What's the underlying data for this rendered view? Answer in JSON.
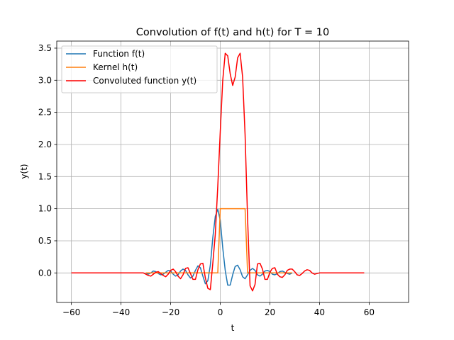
{
  "chart_data": {
    "type": "line",
    "title": "Convolution of f(t) and h(t) for T = 10",
    "xlabel": "t",
    "ylabel": "y(t)",
    "xlim": [
      -65.9,
      75.9
    ],
    "ylim": [
      -0.46,
      3.61
    ],
    "xticks": [
      -60,
      -40,
      -20,
      0,
      20,
      40,
      60
    ],
    "xtick_labels": [
      "−60",
      "−40",
      "−20",
      "0",
      "20",
      "40",
      "60"
    ],
    "yticks": [
      0.0,
      0.5,
      1.0,
      1.5,
      2.0,
      2.5,
      3.0,
      3.5
    ],
    "ytick_labels": [
      "0.0",
      "0.5",
      "1.0",
      "1.5",
      "2.0",
      "2.5",
      "3.0",
      "3.5"
    ],
    "grid": true,
    "legend_position": "top-left",
    "series": [
      {
        "name": "Function f(t)",
        "color": "#1f77b4",
        "x": [
          -30,
          -29,
          -28,
          -27,
          -26,
          -25,
          -24,
          -23,
          -22,
          -21,
          -20,
          -19,
          -18,
          -17,
          -16,
          -15,
          -14,
          -13,
          -12,
          -11,
          -10,
          -9,
          -8,
          -7,
          -6,
          -5,
          -4,
          -3,
          -2,
          -1,
          0,
          1,
          2,
          3,
          4,
          5,
          6,
          7,
          8,
          9,
          10,
          11,
          12,
          13,
          14,
          15,
          16,
          17,
          18,
          19,
          20,
          21,
          22,
          23,
          24,
          25,
          26,
          27,
          28,
          29
        ],
        "y": [
          0.0,
          -0.02,
          0.0,
          0.03,
          0.02,
          -0.01,
          -0.03,
          -0.02,
          0.01,
          0.04,
          0.03,
          -0.02,
          -0.05,
          -0.03,
          0.03,
          0.06,
          0.04,
          -0.03,
          -0.08,
          -0.05,
          0.04,
          0.11,
          0.08,
          -0.05,
          -0.17,
          -0.12,
          0.12,
          0.55,
          0.88,
          0.99,
          0.82,
          0.39,
          0.04,
          -0.19,
          -0.19,
          -0.03,
          0.1,
          0.12,
          0.05,
          -0.06,
          -0.09,
          -0.03,
          0.04,
          0.07,
          0.04,
          -0.03,
          -0.05,
          -0.02,
          0.03,
          0.04,
          0.02,
          -0.02,
          -0.03,
          -0.01,
          0.02,
          0.03,
          0.01,
          -0.01,
          -0.02,
          0.0
        ]
      },
      {
        "name": "Kernel h(t)",
        "color": "#ff7f0e",
        "x": [
          -30,
          -1,
          0,
          10,
          11,
          29
        ],
        "y": [
          0,
          0,
          1,
          1,
          0,
          0
        ]
      },
      {
        "name": "Convoluted function y(t)",
        "color": "#ff0000",
        "x": [
          -60,
          -31,
          -30,
          -29,
          -28,
          -27,
          -26,
          -25,
          -24,
          -23,
          -22,
          -21,
          -20,
          -19,
          -18,
          -17,
          -16,
          -15,
          -14,
          -13,
          -12,
          -11,
          -10,
          -9,
          -8,
          -7,
          -6,
          -5,
          -4,
          -3,
          -2,
          -1,
          0,
          1,
          2,
          3,
          4,
          5,
          6,
          7,
          8,
          9,
          10,
          11,
          12,
          13,
          14,
          15,
          16,
          17,
          18,
          19,
          20,
          21,
          22,
          23,
          24,
          25,
          26,
          27,
          28,
          29,
          30,
          31,
          32,
          33,
          34,
          35,
          36,
          37,
          38,
          39,
          40,
          58
        ],
        "y": [
          0,
          0,
          -0.02,
          -0.04,
          -0.05,
          -0.02,
          0.01,
          0.02,
          -0.01,
          -0.04,
          -0.06,
          -0.02,
          0.04,
          0.06,
          0.02,
          -0.05,
          -0.09,
          -0.03,
          0.07,
          0.08,
          -0.01,
          -0.1,
          -0.1,
          0.05,
          0.14,
          0.15,
          -0.08,
          -0.24,
          -0.26,
          0.15,
          0.6,
          1.35,
          2.2,
          3.0,
          3.42,
          3.38,
          3.1,
          2.92,
          3.05,
          3.35,
          3.42,
          3.05,
          2.15,
          0.85,
          -0.2,
          -0.28,
          -0.18,
          0.14,
          0.15,
          0.06,
          -0.1,
          -0.1,
          0.01,
          0.07,
          0.08,
          -0.02,
          -0.06,
          -0.07,
          -0.03,
          0.04,
          0.06,
          0.06,
          0.02,
          -0.03,
          -0.04,
          -0.01,
          0.03,
          0.05,
          0.04,
          0.0,
          -0.02,
          -0.01,
          0,
          0
        ]
      }
    ]
  }
}
